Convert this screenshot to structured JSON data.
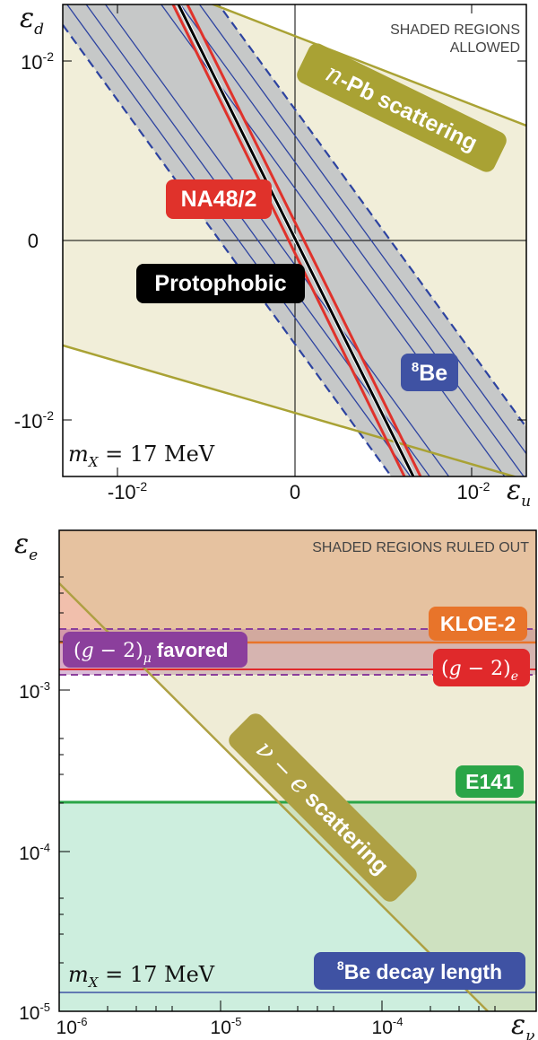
{
  "colors": {
    "allowed_fill": "#f1eed9",
    "npb": "#a9a234",
    "na48": "#e0322b",
    "protophobic": "#000000",
    "be8_band": "#c6c8c8",
    "be8_line": "#2d43a0",
    "kloe_fill": "#e8b896",
    "kloe": "#e8742a",
    "g2mu": "#8b3f9c",
    "g2e": "#e0292b",
    "e141_fill": "#cdeede",
    "e141": "#2aa547",
    "nue": "#aea043",
    "decay": "#3f52a3"
  },
  "chart_data": [
    {
      "type": "line",
      "panel": "top",
      "xlabel": "ε_u",
      "ylabel": "ε_d",
      "x_ticks": [
        "-10-2",
        "0",
        "10-2"
      ],
      "y_ticks": [
        "10-2",
        "0",
        "-10-2"
      ],
      "xlim": [
        -0.0133,
        0.0133
      ],
      "ylim": [
        -0.0133,
        0.0133
      ],
      "note": "SHADED REGIONS ALLOWED",
      "mass_label": "m_X = 17 MeV",
      "series": [
        {
          "name": "n-Pb scattering",
          "kind": "allowed band boundary",
          "x": [
            -0.0133,
            0.0133
          ],
          "y_upper": [
            0.0216,
            0.0066
          ],
          "y_lower": [
            -0.0061,
            -0.0134
          ]
        },
        {
          "name": "NA48/2",
          "x_at_bottom": [
            -0.0031,
            0.0055
          ],
          "x_at_top": [
            -0.0068,
            0.0018
          ]
        },
        {
          "name": "Protophobic",
          "x": [
            -0.0064,
            0.0062
          ],
          "y": [
            0.0133,
            -0.0133
          ]
        },
        {
          "name": "8Be",
          "inner_lines_offset": [
            -0.0038,
            -0.0027,
            -0.0016,
            0.0016,
            0.0027,
            0.0038
          ],
          "band_edge_offset": [
            -0.0049,
            0.0049
          ],
          "slope": -1.35
        }
      ],
      "labels": {
        "npb": "n-Pb scattering",
        "na48": "NA48/2",
        "protophobic": "Protophobic",
        "be8": "8Be"
      }
    },
    {
      "type": "line",
      "panel": "bottom",
      "xscale": "log",
      "yscale": "log",
      "xlabel": "ε_ν",
      "ylabel": "ε_e",
      "x_ticks": [
        "10-6",
        "10-5",
        "10-4"
      ],
      "y_ticks": [
        "10-3",
        "10-4",
        "10-5"
      ],
      "xlim": [
        1e-06,
        0.00063
      ],
      "ylim": [
        9.3e-06,
        0.01
      ],
      "note": "SHADED REGIONS RULED OUT",
      "mass_label": "m_X = 17 MeV",
      "series": [
        {
          "name": "KLOE-2",
          "y": 0.002
        },
        {
          "name": "(g-2)_μ favored",
          "y_range": [
            0.00123,
            0.00245
          ]
        },
        {
          "name": "(g-2)_e",
          "y": 0.0014
        },
        {
          "name": "E141",
          "y": 0.0002
        },
        {
          "name": "ν-e scattering",
          "x": [
            1e-06,
            0.00052
          ],
          "y": [
            0.0049,
            9.3e-06
          ]
        },
        {
          "name": "8Be decay length",
          "y": 1.3e-05
        }
      ],
      "labels": {
        "kloe": "KLOE-2",
        "g2mu": "favored",
        "g2e": "e",
        "e141": "E141",
        "nue": "scattering",
        "decay": "8Be decay length"
      }
    }
  ]
}
